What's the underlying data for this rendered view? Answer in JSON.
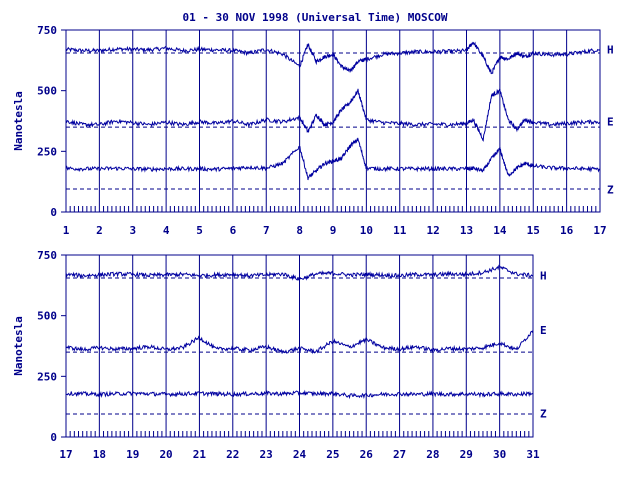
{
  "title": "01 - 30 NOV 1998 (Universal Time) MOSCOW",
  "colors": {
    "ink": "#00008b",
    "trace": "#0000a0",
    "background": "#ffffff"
  },
  "chart_data": [
    {
      "type": "line",
      "title": "01 - 30 NOV 1998 (Universal Time) MOSCOW",
      "ylabel": "Nanotesla",
      "xlabel": "",
      "ylim": [
        0,
        750
      ],
      "xlim": [
        1,
        17
      ],
      "y_ticks": [
        "0",
        "250",
        "500",
        "750"
      ],
      "y_tick_values": [
        0,
        250,
        500,
        750
      ],
      "x_ticks": [
        "1",
        "2",
        "3",
        "4",
        "5",
        "6",
        "7",
        "8",
        "9",
        "10",
        "11",
        "12",
        "13",
        "14",
        "15",
        "16",
        "17"
      ],
      "x_tick_values": [
        1,
        2,
        3,
        4,
        5,
        6,
        7,
        8,
        9,
        10,
        11,
        12,
        13,
        14,
        15,
        16,
        17
      ],
      "grid": "vertical lines at each day",
      "series": [
        {
          "name": "H",
          "baseline": 655,
          "x": [
            1,
            1.5,
            2,
            2.5,
            3,
            3.5,
            4,
            4.5,
            5,
            5.5,
            6,
            6.5,
            7,
            7.5,
            8,
            8.25,
            8.5,
            8.75,
            9,
            9.25,
            9.5,
            9.75,
            10,
            10.5,
            11,
            11.5,
            12,
            12.5,
            13,
            13.2,
            13.5,
            13.75,
            14,
            14.25,
            14.5,
            14.75,
            15,
            15.5,
            16,
            16.5,
            17
          ],
          "y": [
            670,
            665,
            665,
            672,
            670,
            668,
            675,
            665,
            670,
            668,
            665,
            655,
            670,
            650,
            600,
            690,
            620,
            640,
            650,
            600,
            580,
            620,
            630,
            650,
            655,
            660,
            660,
            662,
            665,
            700,
            640,
            570,
            640,
            630,
            655,
            640,
            655,
            648,
            650,
            660,
            670
          ]
        },
        {
          "name": "E",
          "baseline": 350,
          "x": [
            1,
            1.5,
            2,
            2.5,
            3,
            3.5,
            4,
            4.5,
            5,
            5.5,
            6,
            6.5,
            7,
            7.5,
            8,
            8.25,
            8.5,
            8.75,
            9,
            9.25,
            9.5,
            9.75,
            10,
            10.5,
            11,
            11.5,
            12,
            12.5,
            13,
            13.2,
            13.5,
            13.75,
            14,
            14.25,
            14.5,
            14.75,
            15,
            15.5,
            16,
            16.5,
            17
          ],
          "y": [
            375,
            360,
            360,
            375,
            368,
            360,
            370,
            360,
            372,
            365,
            375,
            360,
            380,
            372,
            390,
            330,
            400,
            360,
            370,
            420,
            450,
            500,
            380,
            368,
            365,
            360,
            362,
            360,
            365,
            380,
            300,
            480,
            500,
            380,
            340,
            380,
            370,
            360,
            365,
            370,
            372
          ]
        },
        {
          "name": "Z",
          "baseline": 95,
          "x": [
            1,
            1.5,
            2,
            2.5,
            3,
            3.5,
            4,
            4.5,
            5,
            5.5,
            6,
            6.5,
            7,
            7.5,
            8,
            8.25,
            8.5,
            8.75,
            9,
            9.25,
            9.5,
            9.75,
            10,
            10.5,
            11,
            11.5,
            12,
            12.5,
            13,
            13.2,
            13.5,
            13.75,
            14,
            14.25,
            14.5,
            14.75,
            15,
            15.5,
            16,
            16.5,
            17
          ],
          "y": [
            180,
            178,
            178,
            180,
            178,
            176,
            178,
            178,
            178,
            176,
            180,
            185,
            180,
            200,
            270,
            140,
            170,
            200,
            210,
            220,
            270,
            300,
            180,
            178,
            178,
            178,
            178,
            178,
            178,
            180,
            170,
            220,
            260,
            150,
            180,
            200,
            190,
            182,
            180,
            178,
            176
          ]
        }
      ],
      "annotations": [
        "H",
        "E",
        "Z"
      ]
    },
    {
      "type": "line",
      "ylabel": "Nanotesla",
      "xlabel": "",
      "ylim": [
        0,
        750
      ],
      "xlim": [
        17,
        31
      ],
      "y_ticks": [
        "0",
        "250",
        "500",
        "750"
      ],
      "y_tick_values": [
        0,
        250,
        500,
        750
      ],
      "x_ticks": [
        "17",
        "18",
        "19",
        "20",
        "21",
        "22",
        "23",
        "24",
        "25",
        "26",
        "27",
        "28",
        "29",
        "30",
        "31"
      ],
      "x_tick_values": [
        17,
        18,
        19,
        20,
        21,
        22,
        23,
        24,
        25,
        26,
        27,
        28,
        29,
        30,
        31
      ],
      "grid": "vertical lines at each day",
      "series": [
        {
          "name": "H",
          "baseline": 655,
          "x": [
            17,
            17.5,
            18,
            18.5,
            19,
            19.5,
            20,
            20.5,
            21,
            21.5,
            22,
            22.5,
            23,
            23.5,
            24,
            24.5,
            25,
            25.5,
            26,
            26.5,
            27,
            27.5,
            28,
            28.5,
            29,
            29.5,
            30,
            30.5,
            31
          ],
          "y": [
            670,
            665,
            668,
            672,
            670,
            666,
            668,
            670,
            665,
            668,
            670,
            665,
            668,
            672,
            650,
            672,
            675,
            668,
            670,
            668,
            665,
            670,
            668,
            672,
            670,
            678,
            700,
            672,
            665
          ]
        },
        {
          "name": "E",
          "baseline": 350,
          "x": [
            17,
            17.5,
            18,
            18.5,
            19,
            19.5,
            20,
            20.5,
            21,
            21.5,
            22,
            22.5,
            23,
            23.5,
            24,
            24.5,
            25,
            25.5,
            26,
            26.5,
            27,
            27.5,
            28,
            28.5,
            29,
            29.5,
            30,
            30.5,
            31
          ],
          "y": [
            370,
            360,
            368,
            362,
            365,
            372,
            360,
            368,
            410,
            362,
            365,
            358,
            372,
            350,
            365,
            352,
            395,
            370,
            402,
            368,
            362,
            372,
            358,
            365,
            362,
            368,
            388,
            360,
            440
          ]
        },
        {
          "name": "Z",
          "baseline": 95,
          "x": [
            17,
            17.5,
            18,
            18.5,
            19,
            19.5,
            20,
            20.5,
            21,
            21.5,
            22,
            22.5,
            23,
            23.5,
            24,
            24.5,
            25,
            25.5,
            26,
            26.5,
            27,
            27.5,
            28,
            28.5,
            29,
            29.5,
            30,
            30.5,
            31
          ],
          "y": [
            180,
            178,
            176,
            178,
            180,
            178,
            176,
            178,
            180,
            178,
            176,
            178,
            180,
            178,
            182,
            178,
            180,
            170,
            172,
            176,
            178,
            176,
            178,
            176,
            178,
            175,
            178,
            176,
            180
          ]
        }
      ],
      "annotations": [
        "H",
        "E",
        "Z"
      ]
    }
  ]
}
